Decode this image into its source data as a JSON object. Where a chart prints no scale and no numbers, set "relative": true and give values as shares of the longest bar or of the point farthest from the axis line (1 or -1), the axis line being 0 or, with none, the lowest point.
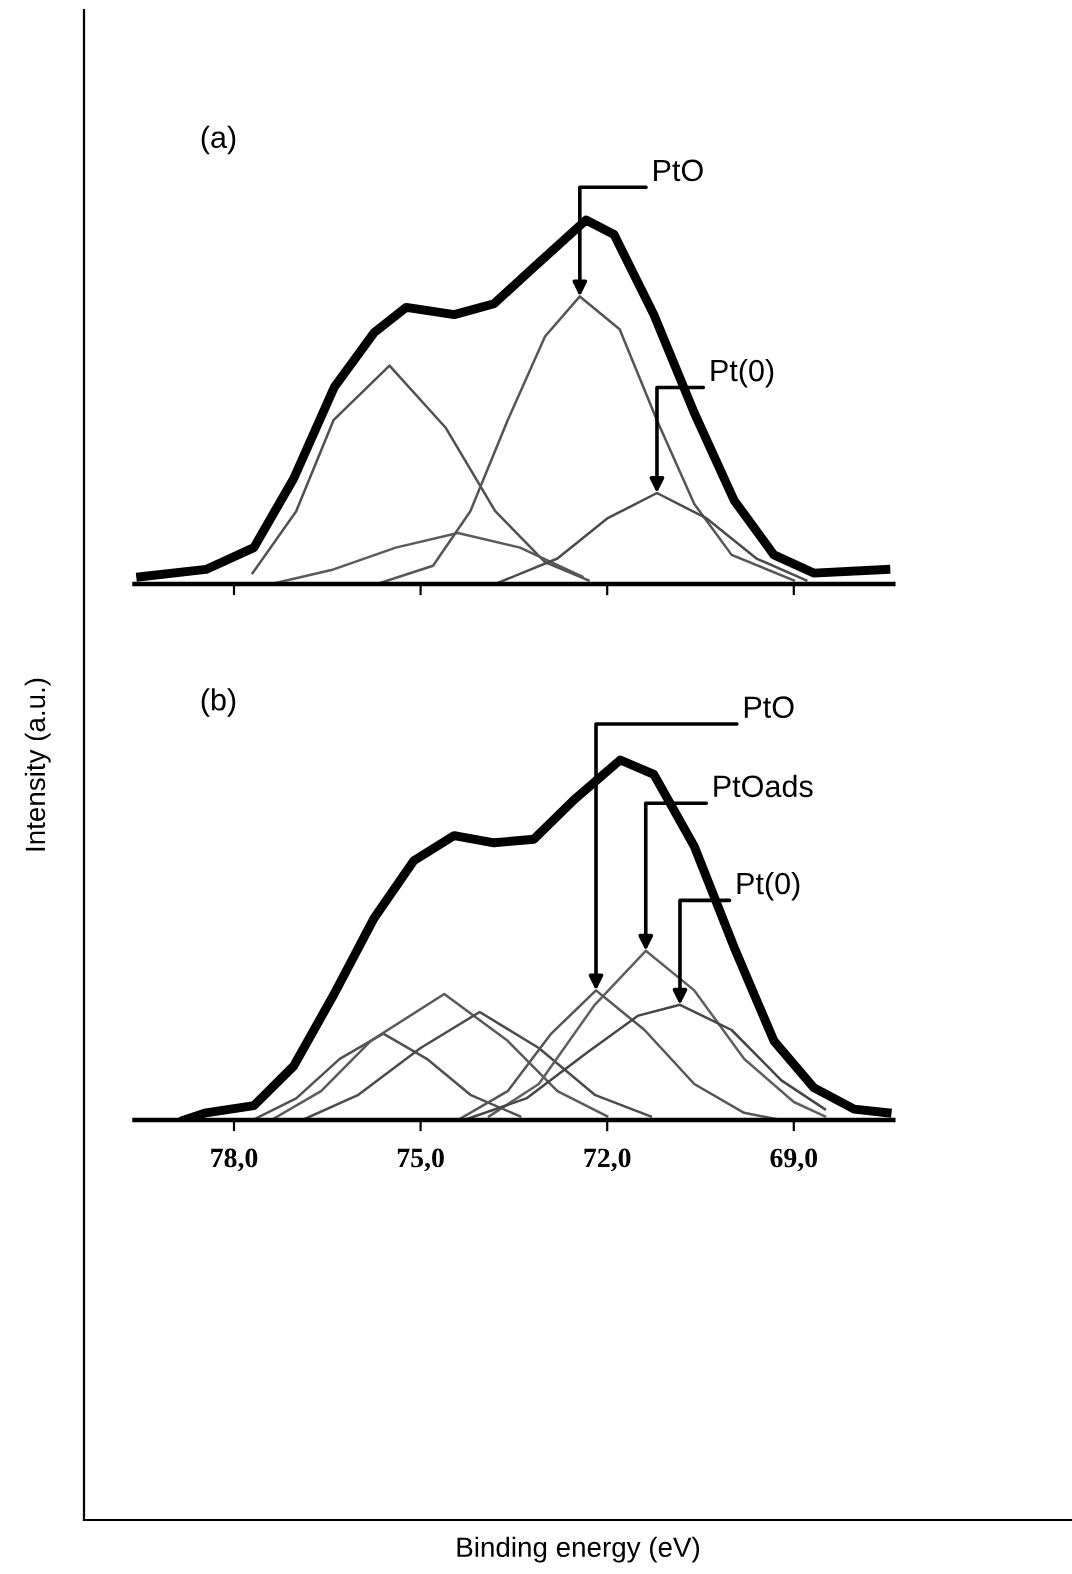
{
  "chart_data": [
    {
      "type": "line",
      "title": "(a)",
      "ylabel": "Intensity (a.u.)",
      "relative": true,
      "xlim": [
        79.6,
        67.4
      ],
      "xticks": [
        {
          "value": 78,
          "label": null
        },
        {
          "value": 75,
          "label": null
        },
        {
          "value": 72,
          "label": null
        },
        {
          "value": 69,
          "label": null
        }
      ],
      "tick_labels": false,
      "grid": false,
      "marker": "none",
      "line_style": "solid",
      "series": [
        {
          "color": "#000000",
          "x": [
            79.5,
            78.45,
            77.68,
            77.04,
            76.39,
            75.75,
            75.23,
            74.46,
            73.82,
            73.18,
            72.34,
            71.89,
            71.25,
            70.6,
            69.96,
            69.32,
            68.68,
            67.52
          ],
          "values": [
            0.02,
            0.04,
            0.1,
            0.29,
            0.54,
            0.69,
            0.76,
            0.74,
            0.77,
            0.87,
            1.0,
            0.96,
            0.74,
            0.47,
            0.23,
            0.08,
            0.03,
            0.04
          ]
        },
        {
          "color": "#505050",
          "x": [
            77.7,
            77.0,
            76.4,
            75.5,
            74.6,
            73.8,
            73.0,
            72.3
          ],
          "values": [
            0.03,
            0.2,
            0.45,
            0.6,
            0.43,
            0.2,
            0.06,
            0.01
          ]
        },
        {
          "color": "#5a5a5a",
          "x": [
            77.4,
            76.4,
            75.4,
            74.4,
            73.4,
            72.4
          ],
          "values": [
            0.0,
            0.04,
            0.1,
            0.14,
            0.1,
            0.02
          ]
        },
        {
          "color": "#555555",
          "x": [
            75.7,
            74.8,
            74.2,
            73.6,
            73.0,
            72.44,
            71.8,
            71.2,
            70.6,
            70.0,
            69.0
          ],
          "values": [
            0.0,
            0.05,
            0.2,
            0.45,
            0.68,
            0.79,
            0.7,
            0.45,
            0.22,
            0.08,
            0.01
          ]
        },
        {
          "color": "#4b4b4b",
          "x": [
            73.8,
            72.8,
            72.0,
            71.2,
            70.4,
            69.6,
            68.8
          ],
          "values": [
            0.0,
            0.07,
            0.18,
            0.25,
            0.18,
            0.07,
            0.01
          ]
        }
      ],
      "annotations": [
        {
          "text": "PtO",
          "x": 72.44,
          "y": 0.79
        },
        {
          "text": "Pt(0)",
          "x": 71.2,
          "y": 0.25
        }
      ]
    },
    {
      "type": "line",
      "title": "(b)",
      "xlabel": "Binding energy (eV)",
      "relative": true,
      "xlim": [
        79.6,
        67.4
      ],
      "xticks": [
        {
          "value": 78,
          "label": "78,0"
        },
        {
          "value": 75,
          "label": "75,0"
        },
        {
          "value": 72,
          "label": "72,0"
        },
        {
          "value": 69,
          "label": "69,0"
        }
      ],
      "tick_labels": "x",
      "grid": false,
      "marker": "none",
      "line_style": "solid",
      "series": [
        {
          "color": "#000000",
          "x": [
            78.8,
            78.45,
            77.68,
            77.04,
            76.39,
            75.75,
            75.11,
            74.46,
            73.82,
            73.18,
            72.53,
            71.79,
            71.25,
            70.6,
            69.96,
            69.32,
            68.68,
            68.03,
            67.5
          ],
          "values": [
            0.0,
            0.02,
            0.04,
            0.15,
            0.35,
            0.56,
            0.72,
            0.79,
            0.77,
            0.78,
            0.89,
            1.0,
            0.96,
            0.76,
            0.48,
            0.22,
            0.09,
            0.03,
            0.02
          ]
        },
        {
          "color": "#505050",
          "x": [
            77.7,
            77.0,
            76.3,
            75.6,
            74.9,
            74.2,
            73.4
          ],
          "values": [
            0.0,
            0.06,
            0.17,
            0.24,
            0.17,
            0.07,
            0.01
          ]
        },
        {
          "color": "#5a5a5a",
          "x": [
            77.4,
            76.6,
            75.8,
            74.62,
            73.6,
            72.8,
            72.0
          ],
          "values": [
            0.0,
            0.08,
            0.22,
            0.35,
            0.22,
            0.08,
            0.01
          ]
        },
        {
          "color": "#4b4b4b",
          "x": [
            76.9,
            76.0,
            75.0,
            74.05,
            73.1,
            72.2,
            71.3
          ],
          "values": [
            0.0,
            0.07,
            0.2,
            0.3,
            0.2,
            0.07,
            0.01
          ]
        },
        {
          "color": "#555555",
          "x": [
            74.4,
            73.6,
            72.9,
            72.18,
            71.4,
            70.6,
            69.8,
            69.2
          ],
          "values": [
            0.0,
            0.08,
            0.24,
            0.36,
            0.25,
            0.1,
            0.02,
            0.0
          ]
        },
        {
          "color": "#5f5f5f",
          "x": [
            73.9,
            73.1,
            72.2,
            71.38,
            70.6,
            69.8,
            69.0,
            68.5
          ],
          "values": [
            0.01,
            0.1,
            0.32,
            0.47,
            0.36,
            0.17,
            0.05,
            0.01
          ]
        },
        {
          "color": "#464646",
          "x": [
            74.3,
            73.3,
            72.3,
            71.5,
            70.83,
            70.0,
            69.2,
            68.5
          ],
          "values": [
            0.0,
            0.06,
            0.19,
            0.29,
            0.32,
            0.25,
            0.11,
            0.03
          ]
        }
      ],
      "annotations": [
        {
          "text": "PtO",
          "x": 72.18,
          "y": 0.36
        },
        {
          "text": "PtOads",
          "x": 71.38,
          "y": 0.47
        },
        {
          "text": "Pt(0)",
          "x": 70.83,
          "y": 0.32
        }
      ]
    }
  ]
}
